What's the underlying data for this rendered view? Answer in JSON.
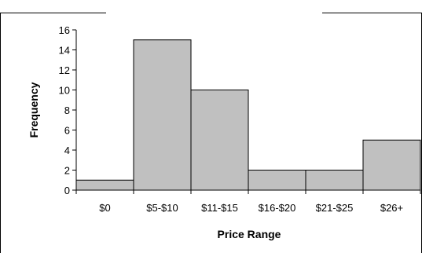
{
  "chart_data": {
    "type": "bar",
    "title": "",
    "xlabel": "Price Range",
    "ylabel": "Frequency",
    "categories": [
      "$0",
      "$5-$10",
      "$11-$15",
      "$16-$20",
      "$21-$25",
      "$26+"
    ],
    "values": [
      1,
      15,
      10,
      2,
      2,
      5
    ],
    "ylim": [
      0,
      16
    ],
    "yticks": [
      "0",
      "2",
      "4",
      "6",
      "8",
      "10",
      "12",
      "14",
      "16"
    ],
    "grid": false,
    "legend": "none",
    "bar_color": "#c0c0c0",
    "bar_edge_color": "#000000",
    "gap_width": 0
  }
}
